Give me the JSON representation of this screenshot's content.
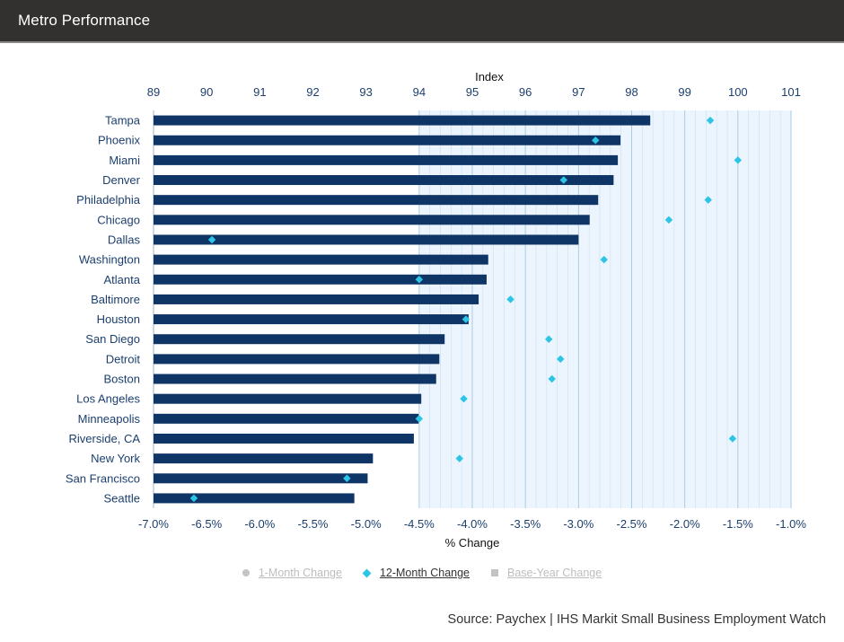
{
  "header": {
    "title": "Metro Performance"
  },
  "legend": {
    "items": [
      {
        "label": "1-Month Change",
        "marker": "circle",
        "active": false
      },
      {
        "label": "12-Month Change",
        "marker": "diamond",
        "active": true
      },
      {
        "label": "Base-Year Change",
        "marker": "square",
        "active": false
      }
    ]
  },
  "source": "Source: Paychex | IHS Markit Small Business Employment Watch",
  "colors": {
    "bar": "#0f3466",
    "diamond": "#2ec4e6",
    "axis_text": "#1c3f6e",
    "band": "#ecf5fd",
    "grid": "#c9e0f2"
  },
  "chart_data": {
    "type": "bar",
    "orientation": "horizontal",
    "categories": [
      "Tampa",
      "Phoenix",
      "Miami",
      "Denver",
      "Philadelphia",
      "Chicago",
      "Dallas",
      "Washington",
      "Atlanta",
      "Baltimore",
      "Houston",
      "San Diego",
      "Detroit",
      "Boston",
      "Los Angeles",
      "Minneapolis",
      "Riverside, CA",
      "New York",
      "San Francisco",
      "Seattle"
    ],
    "series": [
      {
        "type": "bar",
        "axis": "top",
        "values": [
          98.35,
          97.79,
          97.74,
          97.66,
          97.37,
          97.21,
          97.0,
          95.3,
          95.27,
          95.12,
          94.93,
          94.48,
          94.38,
          94.32,
          94.04,
          93.99,
          93.9,
          93.13,
          93.03,
          92.78
        ]
      },
      {
        "name": "12-Month Change",
        "type": "scatter",
        "axis": "bottom",
        "values": [
          -1.76,
          -2.84,
          -1.5,
          -3.14,
          -1.78,
          -2.15,
          -6.45,
          -2.76,
          -4.5,
          -3.64,
          -4.06,
          -3.28,
          -3.17,
          -3.25,
          -4.08,
          -4.5,
          -1.55,
          -4.12,
          -5.18,
          -6.62
        ]
      }
    ],
    "top_axis": {
      "label": "Index",
      "min": 89,
      "max": 101,
      "ticks": [
        "89",
        "90",
        "91",
        "92",
        "93",
        "94",
        "95",
        "96",
        "97",
        "98",
        "99",
        "100",
        "101"
      ]
    },
    "bottom_axis": {
      "label": "% Change",
      "min": -7.0,
      "max": -1.0,
      "ticks": [
        "-7.0%",
        "-6.5%",
        "-6.0%",
        "-5.5%",
        "-5.0%",
        "-4.5%",
        "-4.0%",
        "-3.5%",
        "-3.0%",
        "-2.5%",
        "-2.0%",
        "-1.5%",
        "-1.0%"
      ]
    }
  }
}
